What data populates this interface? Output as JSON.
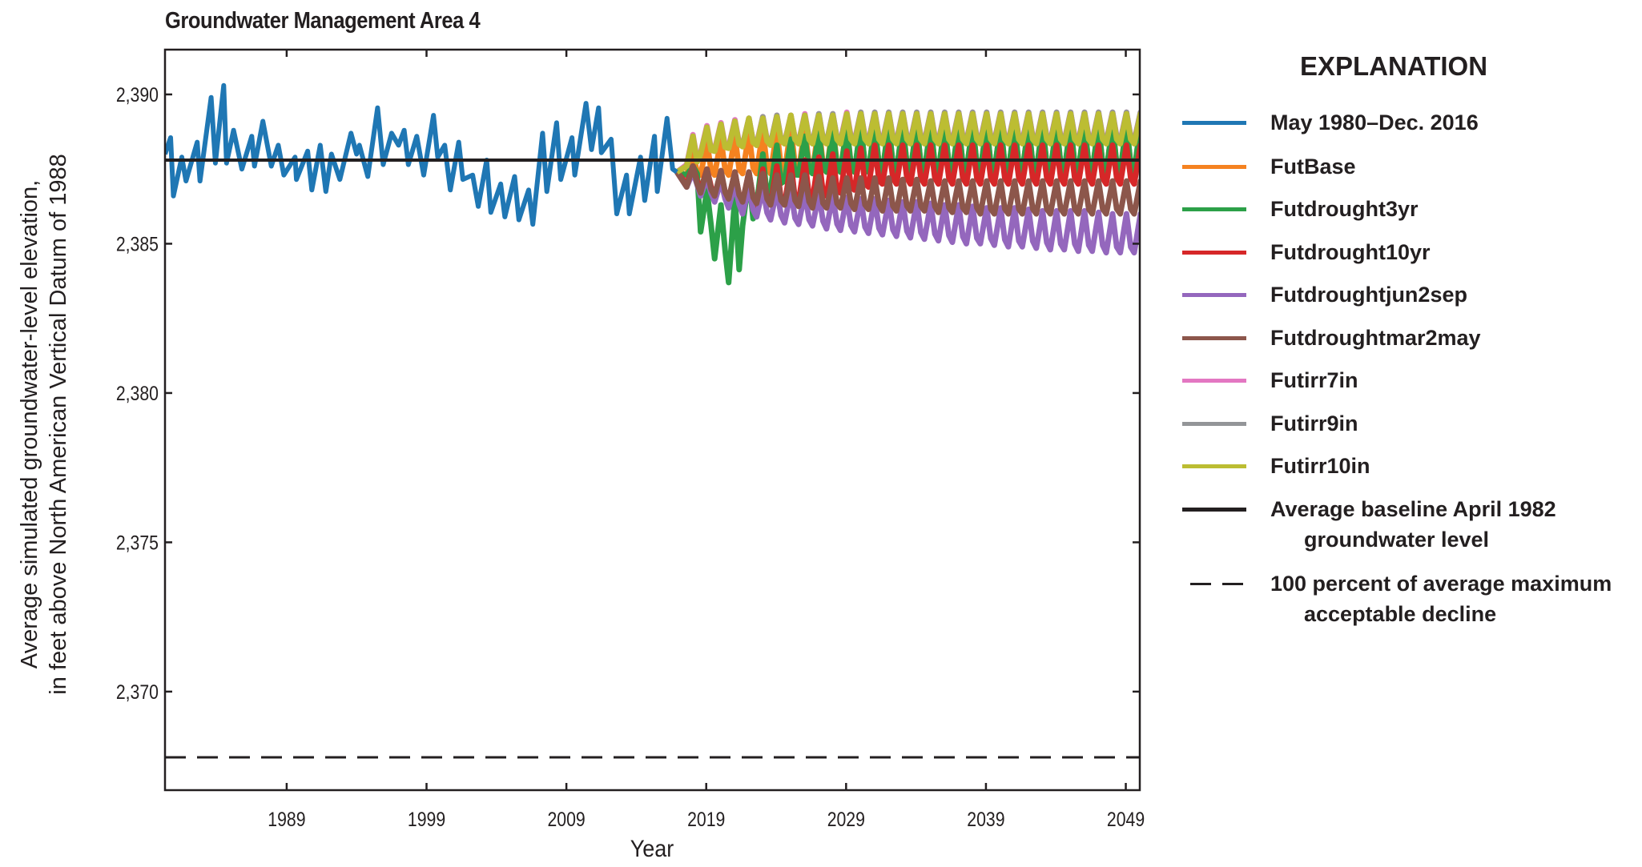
{
  "chart_data": {
    "type": "line",
    "title": "Groundwater Management Area 4",
    "xlabel": "Year",
    "ylabel": [
      "Average simulated groundwater-level elevation,",
      "in feet above North American Vertical Datum of 1988"
    ],
    "xlim": [
      1980.3,
      2050
    ],
    "ylim": [
      2366.7,
      2391.5
    ],
    "xticks": [
      1989,
      1999,
      2009,
      2019,
      2029,
      2039,
      2049
    ],
    "yticks": [
      2370,
      2375,
      2380,
      2385,
      2390
    ],
    "ytick_labels": [
      "2,370",
      "2,375",
      "2,380",
      "2,385",
      "2,390"
    ],
    "grid": false,
    "legend_title": "EXPLANATION",
    "legend_placement": "right",
    "historical": {
      "name": "May 1980–Dec. 2016",
      "color": "#1f77b4",
      "x": [
        1980.3,
        1980.7,
        1980.9,
        1981.5,
        1981.8,
        1982.6,
        1982.8,
        1983.6,
        1983.9,
        1984.5,
        1984.7,
        1985.2,
        1985.8,
        1986.5,
        1986.7,
        1987.3,
        1987.9,
        1988.4,
        1988.8,
        1989.6,
        1989.7,
        1990.5,
        1990.8,
        1991.4,
        1991.8,
        1992.2,
        1992.8,
        1993.6,
        1994.0,
        1994.2,
        1994.8,
        1995.5,
        1995.9,
        1996.5,
        1997.0,
        1997.4,
        1997.7,
        1998.3,
        1998.8,
        1999.5,
        1999.8,
        2000.3,
        2000.7,
        2001.3,
        2001.6,
        2002.3,
        2002.7,
        2003.3,
        2003.6,
        2004.3,
        2004.6,
        2005.3,
        2005.6,
        2006.3,
        2006.6,
        2007.3,
        2007.6,
        2008.3,
        2008.6,
        2009.4,
        2009.6,
        2010.4,
        2010.8,
        2011.3,
        2011.5,
        2012.2,
        2012.6,
        2013.3,
        2013.5,
        2014.3,
        2014.6,
        2015.3,
        2015.5,
        2016.2,
        2016.6,
        2016.9
      ],
      "y": [
        2388.0,
        2388.55,
        2386.6,
        2387.9,
        2387.1,
        2388.4,
        2387.1,
        2389.9,
        2387.7,
        2390.3,
        2387.7,
        2388.8,
        2387.5,
        2388.6,
        2387.6,
        2389.1,
        2387.6,
        2388.3,
        2387.3,
        2387.9,
        2387.15,
        2388.1,
        2386.8,
        2388.3,
        2386.75,
        2388.0,
        2387.15,
        2388.7,
        2388.0,
        2388.3,
        2387.25,
        2389.55,
        2387.65,
        2388.7,
        2388.3,
        2388.8,
        2387.65,
        2388.6,
        2387.3,
        2389.3,
        2387.9,
        2388.3,
        2386.8,
        2388.4,
        2387.15,
        2387.3,
        2386.25,
        2387.8,
        2386.05,
        2387.0,
        2385.9,
        2387.25,
        2385.8,
        2386.8,
        2385.65,
        2388.7,
        2386.75,
        2389.05,
        2387.15,
        2388.55,
        2387.3,
        2389.7,
        2388.15,
        2389.55,
        2388.05,
        2388.5,
        2386.0,
        2387.3,
        2386.0,
        2387.9,
        2386.45,
        2388.6,
        2386.75,
        2389.2,
        2387.5,
        2387.4
      ]
    },
    "future_years": [
      2017,
      2018,
      2019,
      2020,
      2021,
      2022,
      2023,
      2024,
      2025,
      2026,
      2027,
      2028,
      2029,
      2030,
      2031,
      2032,
      2033,
      2034,
      2035,
      2036,
      2037,
      2038,
      2039,
      2040,
      2041,
      2042,
      2043,
      2044,
      2045,
      2046,
      2047,
      2048,
      2049
    ],
    "series": [
      {
        "name": "FutBase",
        "color": "#f58220",
        "annual_high": [
          2388.0,
          2388.4,
          2388.5,
          2388.6,
          2388.7,
          2388.8,
          2388.8,
          2388.9,
          2388.9,
          2389.0,
          2389.0,
          2389.0,
          2389.0,
          2389.0,
          2389.0,
          2389.0,
          2389.0,
          2389.0,
          2389.0,
          2389.0,
          2389.0,
          2389.0,
          2389.0,
          2389.0,
          2389.0,
          2389.0,
          2389.0,
          2389.0,
          2389.0,
          2389.0,
          2389.0,
          2389.0,
          2389.0
        ],
        "annual_low": [
          2387.3,
          2387.3,
          2387.3,
          2387.3,
          2387.35,
          2387.35,
          2387.35,
          2387.4,
          2387.4,
          2387.4,
          2387.4,
          2387.4,
          2387.4,
          2387.4,
          2387.4,
          2387.4,
          2387.4,
          2387.4,
          2387.4,
          2387.4,
          2387.4,
          2387.4,
          2387.4,
          2387.4,
          2387.4,
          2387.4,
          2387.4,
          2387.4,
          2387.4,
          2387.4,
          2387.4,
          2387.4,
          2387.4
        ]
      },
      {
        "name": "Futdrought3yr",
        "color": "#2ca048",
        "annual_high": [
          2387.6,
          2386.8,
          2386.3,
          2386.6,
          2387.2,
          2388.0,
          2388.3,
          2388.5,
          2388.6,
          2388.7,
          2388.8,
          2388.9,
          2389.0,
          2389.0,
          2389.0,
          2389.0,
          2389.0,
          2389.0,
          2389.0,
          2389.0,
          2389.0,
          2389.0,
          2389.0,
          2389.0,
          2389.0,
          2389.0,
          2389.0,
          2389.0,
          2389.0,
          2389.0,
          2389.0,
          2389.0,
          2389.0
        ],
        "annual_low": [
          2387.3,
          2385.4,
          2384.5,
          2383.7,
          2385.6,
          2386.3,
          2386.8,
          2387.1,
          2387.3,
          2387.35,
          2387.4,
          2387.4,
          2387.4,
          2387.4,
          2387.4,
          2387.4,
          2387.4,
          2387.4,
          2387.4,
          2387.4,
          2387.4,
          2387.4,
          2387.4,
          2387.4,
          2387.4,
          2387.4,
          2387.4,
          2387.4,
          2387.4,
          2387.4,
          2387.4,
          2387.4,
          2387.4
        ]
      },
      {
        "name": "Futdrought10yr",
        "color": "#d62728",
        "annual_high": [
          2387.6,
          2387.5,
          2387.4,
          2387.4,
          2387.4,
          2387.5,
          2387.6,
          2387.7,
          2387.8,
          2387.9,
          2388.0,
          2388.1,
          2388.2,
          2388.3,
          2388.3,
          2388.3,
          2388.3,
          2388.3,
          2388.3,
          2388.3,
          2388.3,
          2388.3,
          2388.3,
          2388.3,
          2388.3,
          2388.3,
          2388.3,
          2388.3,
          2388.3,
          2388.3,
          2388.3,
          2388.3,
          2388.3
        ],
        "annual_low": [
          2387.0,
          2386.8,
          2386.6,
          2386.5,
          2386.4,
          2386.3,
          2386.3,
          2386.3,
          2386.4,
          2386.5,
          2386.6,
          2386.7,
          2386.8,
          2386.9,
          2387.0,
          2387.0,
          2387.0,
          2387.0,
          2387.0,
          2387.0,
          2387.0,
          2387.0,
          2387.0,
          2387.0,
          2387.0,
          2387.0,
          2387.0,
          2387.0,
          2387.0,
          2387.0,
          2387.0,
          2387.0,
          2387.0
        ]
      },
      {
        "name": "Futdroughtjun2sep",
        "color": "#9467bd",
        "annual_high": [
          2387.4,
          2387.2,
          2387.1,
          2387.0,
          2386.9,
          2386.85,
          2386.8,
          2386.75,
          2386.7,
          2386.65,
          2386.6,
          2386.55,
          2386.5,
          2386.5,
          2386.45,
          2386.4,
          2386.4,
          2386.35,
          2386.3,
          2386.3,
          2386.25,
          2386.2,
          2386.2,
          2386.2,
          2386.15,
          2386.1,
          2386.1,
          2386.1,
          2386.1,
          2386.05,
          2386.0,
          2386.0,
          2386.0
        ],
        "annual_low": [
          2386.9,
          2386.6,
          2386.4,
          2386.2,
          2386.0,
          2385.9,
          2385.8,
          2385.7,
          2385.65,
          2385.6,
          2385.5,
          2385.45,
          2385.4,
          2385.35,
          2385.3,
          2385.25,
          2385.2,
          2385.15,
          2385.1,
          2385.05,
          2385.0,
          2385.0,
          2384.95,
          2384.9,
          2384.9,
          2384.85,
          2384.8,
          2384.8,
          2384.75,
          2384.75,
          2384.7,
          2384.7,
          2384.7
        ]
      },
      {
        "name": "Futdroughtmar2may",
        "color": "#8c564b",
        "annual_high": [
          2387.6,
          2387.5,
          2387.45,
          2387.4,
          2387.4,
          2387.35,
          2387.3,
          2387.3,
          2387.3,
          2387.25,
          2387.2,
          2387.2,
          2387.2,
          2387.2,
          2387.2,
          2387.15,
          2387.15,
          2387.1,
          2387.1,
          2387.1,
          2387.1,
          2387.1,
          2387.1,
          2387.1,
          2387.1,
          2387.1,
          2387.1,
          2387.1,
          2387.1,
          2387.1,
          2387.1,
          2387.1,
          2387.1
        ],
        "annual_low": [
          2386.9,
          2386.7,
          2386.6,
          2386.5,
          2386.4,
          2386.35,
          2386.3,
          2386.3,
          2386.25,
          2386.2,
          2386.2,
          2386.2,
          2386.15,
          2386.15,
          2386.1,
          2386.1,
          2386.1,
          2386.1,
          2386.05,
          2386.05,
          2386.05,
          2386.0,
          2386.0,
          2386.0,
          2386.0,
          2386.0,
          2386.0,
          2386.0,
          2386.0,
          2386.0,
          2386.0,
          2386.0,
          2386.0
        ]
      },
      {
        "name": "Futirr7in",
        "color": "#e377c2",
        "annual_high": [
          2388.65,
          2388.95,
          2389.05,
          2389.15,
          2389.2,
          2389.25,
          2389.3,
          2389.3,
          2389.35,
          2389.35,
          2389.35,
          2389.4,
          2389.4,
          2389.4,
          2389.4,
          2389.4,
          2389.4,
          2389.4,
          2389.4,
          2389.4,
          2389.4,
          2389.4,
          2389.4,
          2389.4,
          2389.4,
          2389.4,
          2389.4,
          2389.4,
          2389.4,
          2389.4,
          2389.4,
          2389.4,
          2389.4
        ],
        "annual_low": [
          2387.65,
          2388.05,
          2388.15,
          2388.25,
          2388.3,
          2388.35,
          2388.35,
          2388.4,
          2388.4,
          2388.4,
          2388.4,
          2388.45,
          2388.45,
          2388.45,
          2388.45,
          2388.45,
          2388.45,
          2388.45,
          2388.45,
          2388.45,
          2388.45,
          2388.45,
          2388.45,
          2388.45,
          2388.45,
          2388.45,
          2388.45,
          2388.45,
          2388.45,
          2388.45,
          2388.45,
          2388.45,
          2388.45
        ]
      },
      {
        "name": "Futirr9in",
        "color": "#939598",
        "annual_high": [
          2388.6,
          2388.9,
          2389.0,
          2389.1,
          2389.2,
          2389.25,
          2389.3,
          2389.3,
          2389.3,
          2389.35,
          2389.35,
          2389.35,
          2389.4,
          2389.4,
          2389.4,
          2389.4,
          2389.4,
          2389.4,
          2389.4,
          2389.4,
          2389.4,
          2389.4,
          2389.4,
          2389.4,
          2389.4,
          2389.4,
          2389.4,
          2389.4,
          2389.4,
          2389.4,
          2389.4,
          2389.4,
          2389.4
        ],
        "annual_low": [
          2387.6,
          2388.0,
          2388.1,
          2388.2,
          2388.3,
          2388.3,
          2388.35,
          2388.35,
          2388.4,
          2388.4,
          2388.4,
          2388.4,
          2388.4,
          2388.4,
          2388.4,
          2388.4,
          2388.4,
          2388.4,
          2388.4,
          2388.4,
          2388.4,
          2388.4,
          2388.4,
          2388.4,
          2388.4,
          2388.4,
          2388.4,
          2388.4,
          2388.4,
          2388.4,
          2388.4,
          2388.4,
          2388.4
        ]
      },
      {
        "name": "Futirr10in",
        "color": "#bcbd32",
        "annual_high": [
          2388.6,
          2388.9,
          2389.0,
          2389.1,
          2389.2,
          2389.2,
          2389.25,
          2389.3,
          2389.3,
          2389.3,
          2389.3,
          2389.35,
          2389.35,
          2389.35,
          2389.35,
          2389.35,
          2389.35,
          2389.35,
          2389.35,
          2389.35,
          2389.35,
          2389.35,
          2389.35,
          2389.35,
          2389.35,
          2389.35,
          2389.35,
          2389.35,
          2389.35,
          2389.35,
          2389.35,
          2389.35,
          2389.35
        ],
        "annual_low": [
          2387.6,
          2388.0,
          2388.1,
          2388.2,
          2388.25,
          2388.3,
          2388.3,
          2388.35,
          2388.35,
          2388.35,
          2388.35,
          2388.35,
          2388.35,
          2388.35,
          2388.35,
          2388.35,
          2388.35,
          2388.35,
          2388.35,
          2388.35,
          2388.35,
          2388.35,
          2388.35,
          2388.35,
          2388.35,
          2388.35,
          2388.35,
          2388.35,
          2388.35,
          2388.35,
          2388.35,
          2388.35,
          2388.35
        ]
      }
    ],
    "reference_lines": [
      {
        "name": "Average baseline April 1982 groundwater level",
        "label_line1": "Average baseline April 1982",
        "label_line2": "groundwater level",
        "y": 2387.8,
        "color": "#231f20",
        "style": "solid"
      },
      {
        "name": "100 percent of average maximum acceptable decline",
        "label_line1": "100 percent of average maximum",
        "label_line2": "acceptable decline",
        "y": 2367.8,
        "color": "#231f20",
        "style": "dashed"
      }
    ]
  }
}
